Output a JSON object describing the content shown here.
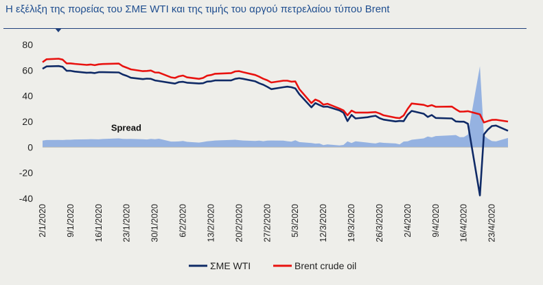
{
  "title": "Η εξέλιξη της πορείας του ΣΜΕ WTI και της τιμής του αργού πετρελαίου τύπου Brent",
  "chart_data": {
    "type": "line",
    "title": "Η εξέλιξη της πορείας του ΣΜΕ WTI και της τιμής του αργού πετρελαίου τύπου Brent",
    "xlabel": "",
    "ylabel": "",
    "ylim": [
      -40,
      80
    ],
    "yticks": [
      80,
      60,
      40,
      20,
      0,
      -20,
      -40
    ],
    "grid": false,
    "legend_position": "bottom",
    "xtick_labels": [
      "2/1/2020",
      "9/1/2020",
      "16/1/2020",
      "23/1/2020",
      "30/1/2020",
      "6/2/2020",
      "13/2/2020",
      "20/2/2020",
      "27/2/2020",
      "5/3/2020",
      "12/3/2020",
      "19/3/2020",
      "26/3/2020",
      "2/4/2020",
      "9/4/2020",
      "16/4/2020",
      "23/4/2020"
    ],
    "annotations": [
      {
        "text": "Spread",
        "x": "16/1/2020",
        "y": 15
      }
    ],
    "series": [
      {
        "name": "ΣΜΕ WTI",
        "kind": "line",
        "color": "#0f2a66",
        "points": [
          [
            "2/1/2020",
            61.2
          ],
          [
            "3/1/2020",
            63.0
          ],
          [
            "6/1/2020",
            63.3
          ],
          [
            "7/1/2020",
            62.7
          ],
          [
            "8/1/2020",
            59.6
          ],
          [
            "9/1/2020",
            59.6
          ],
          [
            "10/1/2020",
            59.0
          ],
          [
            "13/1/2020",
            58.1
          ],
          [
            "14/1/2020",
            58.2
          ],
          [
            "15/1/2020",
            57.8
          ],
          [
            "16/1/2020",
            58.5
          ],
          [
            "17/1/2020",
            58.5
          ],
          [
            "21/1/2020",
            58.3
          ],
          [
            "22/1/2020",
            56.7
          ],
          [
            "23/1/2020",
            55.6
          ],
          [
            "24/1/2020",
            54.2
          ],
          [
            "27/1/2020",
            53.1
          ],
          [
            "28/1/2020",
            53.5
          ],
          [
            "29/1/2020",
            53.3
          ],
          [
            "30/1/2020",
            52.1
          ],
          [
            "31/1/2020",
            51.6
          ],
          [
            "3/2/2020",
            50.1
          ],
          [
            "4/2/2020",
            49.6
          ],
          [
            "5/2/2020",
            50.8
          ],
          [
            "6/2/2020",
            51.0
          ],
          [
            "7/2/2020",
            50.3
          ],
          [
            "10/2/2020",
            49.7
          ],
          [
            "11/2/2020",
            49.9
          ],
          [
            "12/2/2020",
            51.2
          ],
          [
            "13/2/2020",
            51.4
          ],
          [
            "14/2/2020",
            52.1
          ],
          [
            "18/2/2020",
            52.1
          ],
          [
            "19/2/2020",
            53.3
          ],
          [
            "20/2/2020",
            53.8
          ],
          [
            "21/2/2020",
            53.3
          ],
          [
            "24/2/2020",
            51.4
          ],
          [
            "25/2/2020",
            49.9
          ],
          [
            "26/2/2020",
            48.7
          ],
          [
            "27/2/2020",
            47.1
          ],
          [
            "28/2/2020",
            45.3
          ],
          [
            "2/3/2020",
            46.8
          ],
          [
            "3/3/2020",
            47.2
          ],
          [
            "4/3/2020",
            46.8
          ],
          [
            "5/3/2020",
            45.9
          ],
          [
            "6/3/2020",
            41.3
          ],
          [
            "9/3/2020",
            31.1
          ],
          [
            "10/3/2020",
            34.4
          ],
          [
            "11/3/2020",
            32.9
          ],
          [
            "12/3/2020",
            31.5
          ],
          [
            "13/3/2020",
            31.7
          ],
          [
            "16/3/2020",
            28.7
          ],
          [
            "17/3/2020",
            26.9
          ],
          [
            "18/3/2020",
            20.4
          ],
          [
            "19/3/2020",
            25.2
          ],
          [
            "20/3/2020",
            22.4
          ],
          [
            "23/3/2020",
            23.4
          ],
          [
            "24/3/2020",
            24.0
          ],
          [
            "25/3/2020",
            24.5
          ],
          [
            "26/3/2020",
            22.6
          ],
          [
            "27/3/2020",
            21.5
          ],
          [
            "30/3/2020",
            20.1
          ],
          [
            "31/3/2020",
            20.5
          ],
          [
            "1/4/2020",
            20.3
          ],
          [
            "2/4/2020",
            25.3
          ],
          [
            "3/4/2020",
            28.3
          ],
          [
            "6/4/2020",
            26.1
          ],
          [
            "7/4/2020",
            23.6
          ],
          [
            "8/4/2020",
            25.1
          ],
          [
            "9/4/2020",
            22.8
          ],
          [
            "13/4/2020",
            22.4
          ],
          [
            "14/4/2020",
            20.1
          ],
          [
            "15/4/2020",
            19.9
          ],
          [
            "16/4/2020",
            19.9
          ],
          [
            "17/4/2020",
            18.3
          ],
          [
            "20/4/2020",
            -37.6
          ],
          [
            "21/4/2020",
            10.0
          ],
          [
            "22/4/2020",
            13.8
          ],
          [
            "23/4/2020",
            16.5
          ],
          [
            "24/4/2020",
            16.9
          ],
          [
            "27/4/2020",
            12.8
          ]
        ]
      },
      {
        "name": "Brent crude oil",
        "kind": "line",
        "color": "#e8120f",
        "points": [
          [
            "2/1/2020",
            66.3
          ],
          [
            "3/1/2020",
            68.6
          ],
          [
            "6/1/2020",
            69.0
          ],
          [
            "7/1/2020",
            68.3
          ],
          [
            "8/1/2020",
            65.4
          ],
          [
            "9/1/2020",
            65.4
          ],
          [
            "10/1/2020",
            65.0
          ],
          [
            "13/1/2020",
            64.2
          ],
          [
            "14/1/2020",
            64.5
          ],
          [
            "15/1/2020",
            64.0
          ],
          [
            "16/1/2020",
            64.6
          ],
          [
            "17/1/2020",
            64.9
          ],
          [
            "21/1/2020",
            65.2
          ],
          [
            "22/1/2020",
            63.2
          ],
          [
            "23/1/2020",
            62.0
          ],
          [
            "24/1/2020",
            60.7
          ],
          [
            "27/1/2020",
            59.3
          ],
          [
            "28/1/2020",
            59.5
          ],
          [
            "29/1/2020",
            59.8
          ],
          [
            "30/1/2020",
            58.3
          ],
          [
            "31/1/2020",
            58.2
          ],
          [
            "3/2/2020",
            54.5
          ],
          [
            "4/2/2020",
            54.0
          ],
          [
            "5/2/2020",
            55.3
          ],
          [
            "6/2/2020",
            55.9
          ],
          [
            "7/2/2020",
            54.5
          ],
          [
            "10/2/2020",
            53.3
          ],
          [
            "11/2/2020",
            54.0
          ],
          [
            "12/2/2020",
            55.8
          ],
          [
            "13/2/2020",
            56.3
          ],
          [
            "14/2/2020",
            57.3
          ],
          [
            "18/2/2020",
            57.8
          ],
          [
            "19/2/2020",
            59.1
          ],
          [
            "20/2/2020",
            59.3
          ],
          [
            "21/2/2020",
            58.5
          ],
          [
            "24/2/2020",
            56.3
          ],
          [
            "25/2/2020",
            55.0
          ],
          [
            "26/2/2020",
            53.4
          ],
          [
            "27/2/2020",
            52.2
          ],
          [
            "28/2/2020",
            50.5
          ],
          [
            "2/3/2020",
            51.9
          ],
          [
            "3/3/2020",
            51.9
          ],
          [
            "4/3/2020",
            51.1
          ],
          [
            "5/3/2020",
            51.3
          ],
          [
            "6/3/2020",
            45.3
          ],
          [
            "9/3/2020",
            34.4
          ],
          [
            "10/3/2020",
            37.2
          ],
          [
            "11/3/2020",
            35.8
          ],
          [
            "12/3/2020",
            33.2
          ],
          [
            "13/3/2020",
            33.9
          ],
          [
            "16/3/2020",
            30.1
          ],
          [
            "17/3/2020",
            28.7
          ],
          [
            "18/3/2020",
            24.9
          ],
          [
            "19/3/2020",
            28.5
          ],
          [
            "20/3/2020",
            27.0
          ],
          [
            "23/3/2020",
            27.0
          ],
          [
            "24/3/2020",
            27.2
          ],
          [
            "25/3/2020",
            27.4
          ],
          [
            "26/3/2020",
            26.3
          ],
          [
            "27/3/2020",
            24.9
          ],
          [
            "30/3/2020",
            23.0
          ],
          [
            "31/3/2020",
            22.7
          ],
          [
            "1/4/2020",
            24.7
          ],
          [
            "2/4/2020",
            29.9
          ],
          [
            "3/4/2020",
            34.1
          ],
          [
            "6/4/2020",
            33.0
          ],
          [
            "7/4/2020",
            31.9
          ],
          [
            "8/4/2020",
            32.8
          ],
          [
            "9/4/2020",
            31.5
          ],
          [
            "13/4/2020",
            31.7
          ],
          [
            "14/4/2020",
            29.6
          ],
          [
            "15/4/2020",
            27.7
          ],
          [
            "16/4/2020",
            27.8
          ],
          [
            "17/4/2020",
            28.1
          ],
          [
            "20/4/2020",
            25.6
          ],
          [
            "21/4/2020",
            19.3
          ],
          [
            "22/4/2020",
            20.4
          ],
          [
            "23/4/2020",
            21.3
          ],
          [
            "24/4/2020",
            21.4
          ],
          [
            "27/4/2020",
            19.99
          ]
        ]
      },
      {
        "name": "Spread",
        "kind": "area",
        "color": "#8faee0",
        "points": [
          [
            "2/1/2020",
            5.1
          ],
          [
            "3/1/2020",
            5.6
          ],
          [
            "6/1/2020",
            5.7
          ],
          [
            "7/1/2020",
            5.6
          ],
          [
            "8/1/2020",
            5.8
          ],
          [
            "9/1/2020",
            5.8
          ],
          [
            "10/1/2020",
            6.0
          ],
          [
            "13/1/2020",
            6.1
          ],
          [
            "14/1/2020",
            6.3
          ],
          [
            "15/1/2020",
            6.2
          ],
          [
            "16/1/2020",
            6.1
          ],
          [
            "17/1/2020",
            6.4
          ],
          [
            "21/1/2020",
            6.9
          ],
          [
            "22/1/2020",
            6.5
          ],
          [
            "23/1/2020",
            6.4
          ],
          [
            "24/1/2020",
            6.5
          ],
          [
            "27/1/2020",
            6.2
          ],
          [
            "28/1/2020",
            6.0
          ],
          [
            "29/1/2020",
            6.5
          ],
          [
            "30/1/2020",
            6.2
          ],
          [
            "31/1/2020",
            6.6
          ],
          [
            "3/2/2020",
            4.4
          ],
          [
            "4/2/2020",
            4.4
          ],
          [
            "5/2/2020",
            4.5
          ],
          [
            "6/2/2020",
            4.9
          ],
          [
            "7/2/2020",
            4.2
          ],
          [
            "10/2/2020",
            3.6
          ],
          [
            "11/2/2020",
            4.1
          ],
          [
            "12/2/2020",
            4.6
          ],
          [
            "13/2/2020",
            4.9
          ],
          [
            "14/2/2020",
            5.2
          ],
          [
            "18/2/2020",
            5.7
          ],
          [
            "19/2/2020",
            5.8
          ],
          [
            "20/2/2020",
            5.5
          ],
          [
            "21/2/2020",
            5.2
          ],
          [
            "24/2/2020",
            4.9
          ],
          [
            "25/2/2020",
            5.1
          ],
          [
            "26/2/2020",
            4.7
          ],
          [
            "27/2/2020",
            5.1
          ],
          [
            "28/2/2020",
            5.2
          ],
          [
            "2/3/2020",
            5.1
          ],
          [
            "3/3/2020",
            4.7
          ],
          [
            "4/3/2020",
            4.3
          ],
          [
            "5/3/2020",
            5.4
          ],
          [
            "6/3/2020",
            4.0
          ],
          [
            "9/3/2020",
            3.3
          ],
          [
            "10/3/2020",
            2.8
          ],
          [
            "11/3/2020",
            2.9
          ],
          [
            "12/3/2020",
            1.7
          ],
          [
            "13/3/2020",
            2.2
          ],
          [
            "16/3/2020",
            1.4
          ],
          [
            "17/3/2020",
            1.8
          ],
          [
            "18/3/2020",
            4.5
          ],
          [
            "19/3/2020",
            3.3
          ],
          [
            "20/3/2020",
            4.6
          ],
          [
            "23/3/2020",
            3.6
          ],
          [
            "24/3/2020",
            3.2
          ],
          [
            "25/3/2020",
            2.9
          ],
          [
            "26/3/2020",
            3.7
          ],
          [
            "27/3/2020",
            3.4
          ],
          [
            "30/3/2020",
            2.9
          ],
          [
            "31/3/2020",
            2.2
          ],
          [
            "1/4/2020",
            4.4
          ],
          [
            "2/4/2020",
            4.6
          ],
          [
            "3/4/2020",
            5.8
          ],
          [
            "6/4/2020",
            6.9
          ],
          [
            "7/4/2020",
            8.3
          ],
          [
            "8/4/2020",
            7.7
          ],
          [
            "9/4/2020",
            8.7
          ],
          [
            "13/4/2020",
            9.3
          ],
          [
            "14/4/2020",
            9.5
          ],
          [
            "15/4/2020",
            7.8
          ],
          [
            "16/4/2020",
            7.9
          ],
          [
            "17/4/2020",
            9.8
          ],
          [
            "20/4/2020",
            63.2
          ],
          [
            "21/4/2020",
            9.3
          ],
          [
            "22/4/2020",
            6.6
          ],
          [
            "23/4/2020",
            4.8
          ],
          [
            "24/4/2020",
            4.5
          ],
          [
            "27/4/2020",
            7.2
          ]
        ]
      }
    ]
  }
}
